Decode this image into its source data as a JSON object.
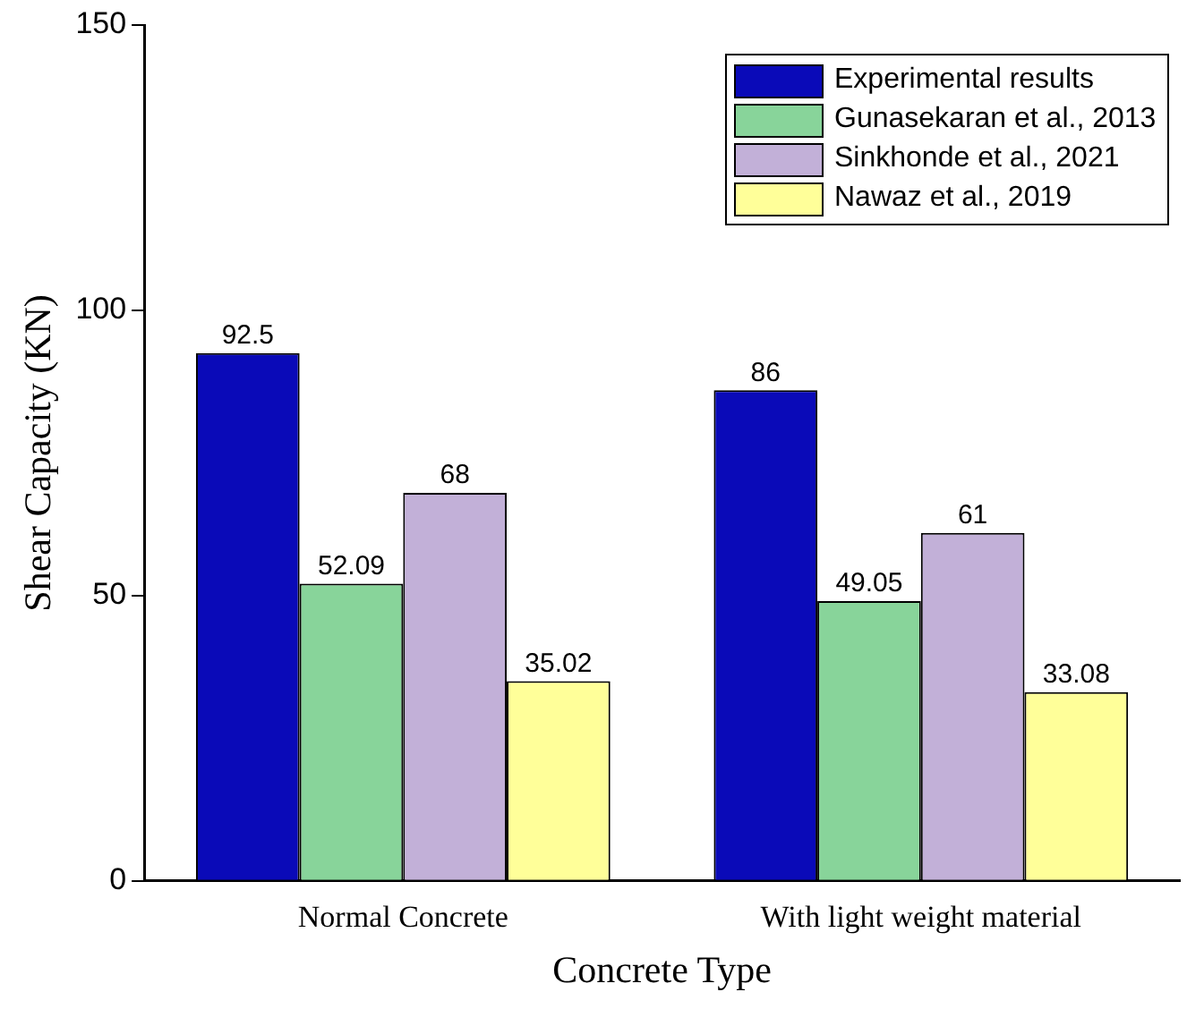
{
  "chart_data": {
    "type": "bar",
    "xlabel": "Concrete Type",
    "ylabel": "Shear Capacity (KN)",
    "categories": [
      "Normal Concrete",
      "With light weight material"
    ],
    "series": [
      {
        "name": "Experimental results",
        "color": "#0a0ab8",
        "values": [
          92.5,
          86
        ]
      },
      {
        "name": "Gunasekaran et al., 2013",
        "color": "#88d49a",
        "values": [
          52.09,
          49.05
        ]
      },
      {
        "name": "Sinkhonde et al., 2021",
        "color": "#c2b0d8",
        "values": [
          68,
          61
        ]
      },
      {
        "name": "Nawaz et al., 2019",
        "color": "#ffff99",
        "values": [
          35.02,
          33.08
        ]
      }
    ],
    "ylim": [
      0,
      150
    ],
    "yticks": [
      0,
      50,
      100,
      150
    ],
    "grid": false,
    "legend": "top right",
    "data_labels": true
  }
}
